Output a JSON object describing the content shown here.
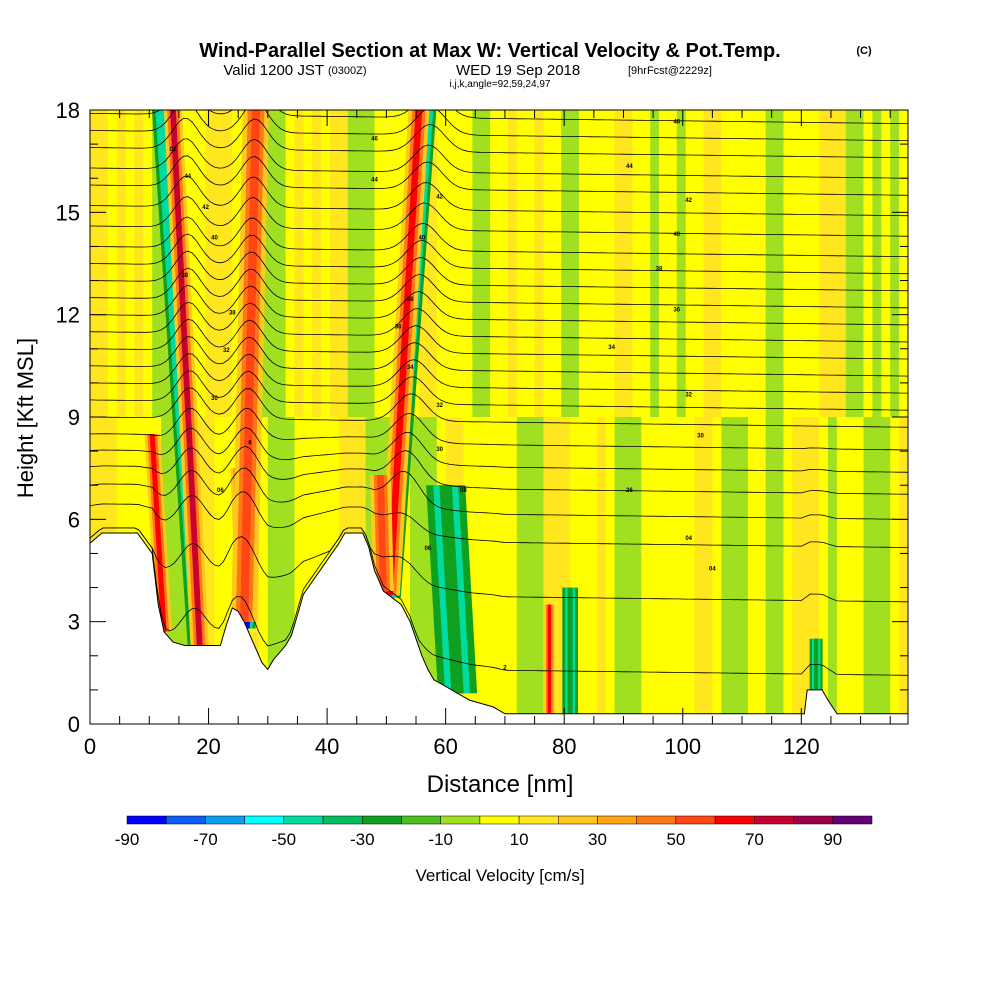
{
  "chart_data": {
    "type": "heatmap",
    "title": "Wind-Parallel Section at Max W: Vertical Velocity & Pot.Temp.",
    "copyright_mark": "(C)",
    "subtitle_valid": "Valid 1200 JST",
    "subtitle_utc": "(0300Z)",
    "subtitle_date": "WED 19 Sep 2018",
    "subtitle_fcst": "[9hrFcst@2229z]",
    "subtitle_index": "i,j,k,angle=92,59,24,97",
    "xlabel": "Distance [nm]",
    "ylabel": "Height [Kft MSL]",
    "xlim": [
      0,
      138
    ],
    "ylim": [
      0,
      18
    ],
    "x_ticks": [
      {
        "value": 0,
        "label": "0"
      },
      {
        "value": 20,
        "label": "20"
      },
      {
        "value": 40,
        "label": "40"
      },
      {
        "value": 60,
        "label": "60"
      },
      {
        "value": 80,
        "label": "80"
      },
      {
        "value": 100,
        "label": "100"
      },
      {
        "value": 120,
        "label": "120"
      }
    ],
    "y_ticks": [
      {
        "value": 0,
        "label": "0"
      },
      {
        "value": 3,
        "label": "3"
      },
      {
        "value": 6,
        "label": "6"
      },
      {
        "value": 9,
        "label": "9"
      },
      {
        "value": 12,
        "label": "12"
      },
      {
        "value": 15,
        "label": "15"
      },
      {
        "value": 18,
        "label": "18"
      }
    ],
    "colorbar": {
      "label": "Vertical Velocity [cm/s]",
      "levels": [
        -90,
        -80,
        -70,
        -60,
        -50,
        -40,
        -30,
        -20,
        -10,
        0,
        10,
        20,
        30,
        40,
        50,
        60,
        70,
        80,
        90,
        100
      ],
      "colors": [
        "#0000ff",
        "#0a5ef5",
        "#0aa0f0",
        "#00ffff",
        "#00dca0",
        "#00c060",
        "#10a020",
        "#4bbf1e",
        "#a0e020",
        "#ffff00",
        "#ffe61e",
        "#ffc81e",
        "#ffa514",
        "#ff7814",
        "#ff4614",
        "#ff0000",
        "#c8002d",
        "#a0004b",
        "#640078"
      ],
      "tick_labels": [
        {
          "value": -90,
          "label": "-90"
        },
        {
          "value": -70,
          "label": "-70"
        },
        {
          "value": -50,
          "label": "-50"
        },
        {
          "value": -30,
          "label": "-30"
        },
        {
          "value": -10,
          "label": "-10"
        },
        {
          "value": 10,
          "label": "10"
        },
        {
          "value": 30,
          "label": "30"
        },
        {
          "value": 50,
          "label": "50"
        },
        {
          "value": 70,
          "label": "70"
        },
        {
          "value": 90,
          "label": "90"
        }
      ]
    },
    "terrain_profile": [
      [
        0,
        5.3
      ],
      [
        2,
        5.6
      ],
      [
        8,
        5.6
      ],
      [
        10.5,
        5.0
      ],
      [
        11.5,
        3.5
      ],
      [
        12.5,
        2.7
      ],
      [
        14,
        2.4
      ],
      [
        16,
        2.3
      ],
      [
        18,
        2.3
      ],
      [
        20,
        2.3
      ],
      [
        22,
        2.3
      ],
      [
        23,
        2.9
      ],
      [
        24,
        3.4
      ],
      [
        25,
        3.3
      ],
      [
        26,
        3.0
      ],
      [
        27,
        2.6
      ],
      [
        28,
        2.2
      ],
      [
        29,
        1.8
      ],
      [
        30,
        1.6
      ],
      [
        31,
        1.9
      ],
      [
        32,
        2.1
      ],
      [
        33,
        2.3
      ],
      [
        34,
        2.6
      ],
      [
        35,
        3.2
      ],
      [
        36,
        3.8
      ],
      [
        38,
        4.3
      ],
      [
        40,
        4.8
      ],
      [
        42,
        5.3
      ],
      [
        43,
        5.6
      ],
      [
        46,
        5.6
      ],
      [
        47,
        5.2
      ],
      [
        48,
        4.5
      ],
      [
        49.5,
        3.9
      ],
      [
        51,
        3.7
      ],
      [
        52.5,
        3.5
      ],
      [
        54,
        3.0
      ],
      [
        55,
        2.5
      ],
      [
        56,
        2.0
      ],
      [
        57,
        1.6
      ],
      [
        58,
        1.3
      ],
      [
        60,
        1.1
      ],
      [
        62,
        0.9
      ],
      [
        64,
        0.7
      ],
      [
        66,
        0.6
      ],
      [
        68,
        0.5
      ],
      [
        70,
        0.3
      ],
      [
        76,
        0.3
      ],
      [
        80,
        0.3
      ],
      [
        90,
        0.3
      ],
      [
        100,
        0.3
      ],
      [
        110,
        0.3
      ],
      [
        120.5,
        0.3
      ],
      [
        121,
        1.0
      ],
      [
        123.5,
        1.0
      ],
      [
        124.5,
        0.7
      ],
      [
        126,
        0.3
      ],
      [
        138,
        0.3
      ]
    ],
    "vertical_velocity_features": [
      {
        "x0": 12,
        "x1": 18,
        "y0": 18,
        "w_cm_s": -45,
        "width_nm": 1.4,
        "along": 2.2
      },
      {
        "x0": 14,
        "x1": 18.5,
        "y0": 18,
        "w_cm_s": 70,
        "width_nm": 1.4,
        "along": 2.2
      },
      {
        "x0": 10.5,
        "x1": 12.5,
        "y0": 8.5,
        "w_cm_s": 60,
        "width_nm": 1.2,
        "along": 2.0
      },
      {
        "x0": 25,
        "x1": 26,
        "y0": 7.5,
        "w_cm_s": 65,
        "width_nm": 1.2,
        "along": 2.0
      },
      {
        "x0": 28.5,
        "x1": 26.5,
        "y0": 18,
        "w_cm_s": -85,
        "width_nm": 1.3,
        "along": 3.2
      },
      {
        "x0": 28,
        "x1": 26,
        "y0": 18,
        "w_cm_s": 55,
        "width_nm": 2.0,
        "along": 2.0
      },
      {
        "x0": 57,
        "x1": 51,
        "y0": 18,
        "w_cm_s": -50,
        "width_nm": 1.3,
        "along": 2.6
      },
      {
        "x0": 55.5,
        "x1": 50.5,
        "y0": 18,
        "w_cm_s": 60,
        "width_nm": 1.6,
        "along": 2.2
      },
      {
        "x0": 49,
        "x1": 49.5,
        "y0": 7.3,
        "w_cm_s": 55,
        "width_nm": 1.6,
        "along": 1.8
      },
      {
        "x0": 77.5,
        "x1": 77.5,
        "y0": 3.5,
        "w_cm_s": 65,
        "width_nm": 0.8,
        "along": 1.5
      },
      {
        "x0": 60,
        "x1": 62,
        "y0": 7.0,
        "w_cm_s": -30,
        "width_nm": 3.0,
        "along": 2.0
      },
      {
        "x0": 81,
        "x1": 81,
        "y0": 4.0,
        "w_cm_s": -30,
        "width_nm": 1.2,
        "along": 2.0
      },
      {
        "x0": 122.5,
        "x1": 122.5,
        "y0": 2.5,
        "w_cm_s": -30,
        "width_nm": 1.0,
        "along": 1.6
      }
    ],
    "potential_temperature_contours": {
      "levels_k": [
        300,
        302,
        304,
        306,
        308,
        310,
        312,
        314,
        316,
        318,
        320,
        322,
        324,
        326,
        328,
        330,
        332,
        334,
        336,
        338,
        340,
        342,
        344,
        346,
        348,
        350
      ],
      "level_heights_kft": [
        1.8,
        4.1,
        5.7,
        6.5,
        7.2,
        7.8,
        8.4,
        9.0,
        9.5,
        10.0,
        10.5,
        11.0,
        11.5,
        12.0,
        12.5,
        13.0,
        13.5,
        14.0,
        14.6,
        15.2,
        15.8,
        16.3,
        16.9,
        17.4,
        17.9,
        18.4
      ]
    },
    "contour_labels_visible": [
      {
        "x": 14,
        "y": 16.8,
        "text": "02"
      },
      {
        "x": 16.5,
        "y": 16.0,
        "text": "44"
      },
      {
        "x": 19.5,
        "y": 15.1,
        "text": "42"
      },
      {
        "x": 21,
        "y": 14.2,
        "text": "40"
      },
      {
        "x": 16,
        "y": 13.1,
        "text": "38"
      },
      {
        "x": 24,
        "y": 12.0,
        "text": "38"
      },
      {
        "x": 23,
        "y": 10.9,
        "text": "32"
      },
      {
        "x": 21,
        "y": 9.5,
        "text": "30"
      },
      {
        "x": 27,
        "y": 8.2,
        "text": "6"
      },
      {
        "x": 22,
        "y": 6.8,
        "text": "06"
      },
      {
        "x": 48,
        "y": 17.1,
        "text": "46"
      },
      {
        "x": 48,
        "y": 15.9,
        "text": "44"
      },
      {
        "x": 59,
        "y": 15.4,
        "text": "42"
      },
      {
        "x": 56,
        "y": 14.2,
        "text": "40"
      },
      {
        "x": 54,
        "y": 12.4,
        "text": "38"
      },
      {
        "x": 52,
        "y": 11.6,
        "text": "36"
      },
      {
        "x": 54,
        "y": 10.4,
        "text": "34"
      },
      {
        "x": 59,
        "y": 9.3,
        "text": "32"
      },
      {
        "x": 59,
        "y": 8.0,
        "text": "30"
      },
      {
        "x": 63,
        "y": 6.8,
        "text": "08"
      },
      {
        "x": 57,
        "y": 5.1,
        "text": "06"
      },
      {
        "x": 70,
        "y": 1.6,
        "text": "2"
      },
      {
        "x": 99,
        "y": 17.6,
        "text": "46"
      },
      {
        "x": 91,
        "y": 16.3,
        "text": "44"
      },
      {
        "x": 101,
        "y": 15.3,
        "text": "42"
      },
      {
        "x": 99,
        "y": 14.3,
        "text": "40"
      },
      {
        "x": 96,
        "y": 13.3,
        "text": "38"
      },
      {
        "x": 99,
        "y": 12.1,
        "text": "36"
      },
      {
        "x": 88,
        "y": 11.0,
        "text": "34"
      },
      {
        "x": 101,
        "y": 9.6,
        "text": "32"
      },
      {
        "x": 103,
        "y": 8.4,
        "text": "30"
      },
      {
        "x": 91,
        "y": 6.8,
        "text": "26"
      },
      {
        "x": 101,
        "y": 5.4,
        "text": "04"
      },
      {
        "x": 105,
        "y": 4.5,
        "text": "04"
      }
    ]
  }
}
